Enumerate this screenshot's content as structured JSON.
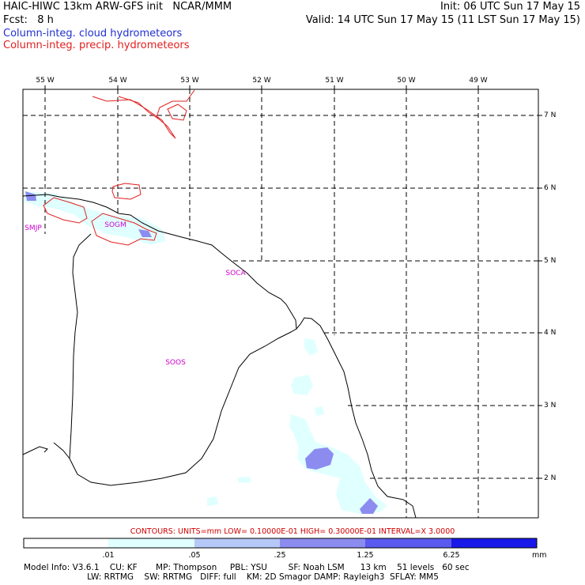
{
  "header": {
    "title": "HAIC-HIWC 13km ARW-GFS init   NCAR/MMM",
    "init": "Init: 06 UTC Sun 17 May 15",
    "fcst": "Fcst:   8 h",
    "valid": "Valid: 14 UTC Sun 17 May 15 (11 LST Sun 17 May 15)",
    "legend_cloud": "Column-integ. cloud hydrometeors",
    "legend_precip": "Column-integ. precip. hydrometeors"
  },
  "colors": {
    "cloud_text": "#2030d0",
    "precip": "#e02020",
    "station": "#d000d0",
    "shade_1": "#e0ffff",
    "shade_2": "#b6c8f8",
    "shade_3": "#8c8cf0",
    "shade_4": "#5a5af0",
    "shade_5": "#1818e8"
  },
  "longitudes": [
    "55 W",
    "54 W",
    "53 W",
    "52 W",
    "51 W",
    "50 W",
    "49 W"
  ],
  "latitudes": [
    "7 N",
    "6 N",
    "5 N",
    "4 N",
    "3 N",
    "2 N"
  ],
  "stations": [
    "SMJP",
    "SOGM",
    "SOCA",
    "SOOS"
  ],
  "contours_note": "CONTOURS:  UNITS=mm  LOW= 0.10000E-01  HIGH= 0.30000E-01  INTERVAL=X  3.0000",
  "colorbar": {
    "labels": [
      ".01",
      ".05",
      ".25",
      "1.25",
      "6.25"
    ],
    "unit": "mm"
  },
  "model_info": {
    "line1": "Model Info: V3.6.1    CU: KF       MP: Thompson     PBL: YSU        SF: Noah LSM      13 km    51 levels   60 sec",
    "line2": "                        LW: RRTMG    SW: RRTMG   DIFF: full    KM: 2D Smagor DAMP: Rayleigh3  SFLAY: MM5"
  }
}
